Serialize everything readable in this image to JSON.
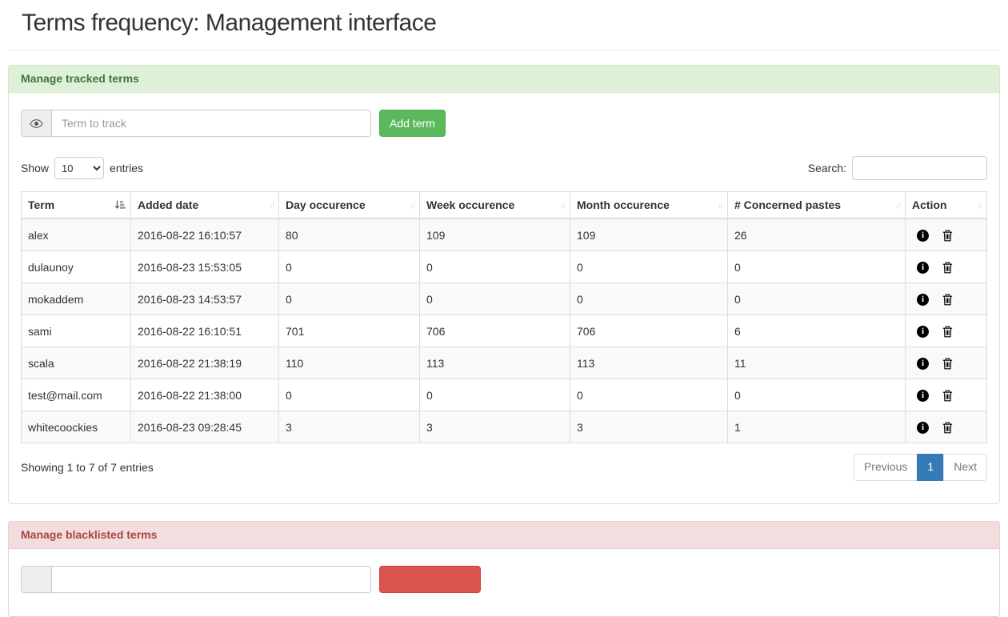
{
  "page": {
    "title": "Terms frequency: Management interface"
  },
  "colors": {
    "success_bg": "#dff0d8",
    "success_border": "#d6e9c6",
    "success_text": "#3c763d",
    "danger_bg": "#f2dede",
    "danger_border": "#ebccd1",
    "danger_text": "#a94442",
    "btn_success": "#5cb85c",
    "btn_danger": "#d9534f",
    "pagination_active": "#337ab7",
    "table_border": "#ddd",
    "stripe": "#f9f9f9"
  },
  "tracked_panel": {
    "title": "Manage tracked terms",
    "input_placeholder": "Term to track",
    "input_addon_icon": "eye-icon",
    "add_button": "Add term",
    "table": {
      "show_label": "Show",
      "show_value": "10",
      "entries_label": "entries",
      "search_label": "Search:",
      "search_value": "",
      "columns": [
        {
          "key": "term",
          "label": "Term",
          "sort": "asc-active"
        },
        {
          "key": "added",
          "label": "Added date",
          "sort": "none"
        },
        {
          "key": "day",
          "label": "Day occurence",
          "sort": "none"
        },
        {
          "key": "week",
          "label": "Week occurence",
          "sort": "none"
        },
        {
          "key": "month",
          "label": "Month occurence",
          "sort": "none"
        },
        {
          "key": "pastes",
          "label": "# Concerned pastes",
          "sort": "none"
        },
        {
          "key": "action",
          "label": "Action",
          "sort": "none"
        }
      ],
      "row_action_icons": [
        "info-icon",
        "trash-icon"
      ],
      "rows": [
        {
          "term": "alex",
          "added": "2016-08-22 16:10:57",
          "day": "80",
          "week": "109",
          "month": "109",
          "pastes": "26"
        },
        {
          "term": "dulaunoy",
          "added": "2016-08-23 15:53:05",
          "day": "0",
          "week": "0",
          "month": "0",
          "pastes": "0"
        },
        {
          "term": "mokaddem",
          "added": "2016-08-23 14:53:57",
          "day": "0",
          "week": "0",
          "month": "0",
          "pastes": "0"
        },
        {
          "term": "sami",
          "added": "2016-08-22 16:10:51",
          "day": "701",
          "week": "706",
          "month": "706",
          "pastes": "6"
        },
        {
          "term": "scala",
          "added": "2016-08-22 21:38:19",
          "day": "110",
          "week": "113",
          "month": "113",
          "pastes": "11"
        },
        {
          "term": "test@mail.com",
          "added": "2016-08-22 21:38:00",
          "day": "0",
          "week": "0",
          "month": "0",
          "pastes": "0"
        },
        {
          "term": "whitecoockies",
          "added": "2016-08-23 09:28:45",
          "day": "3",
          "week": "3",
          "month": "3",
          "pastes": "1"
        }
      ],
      "info": "Showing 1 to 7 of 7 entries",
      "pagination": {
        "previous": "Previous",
        "page": "1",
        "next": "Next"
      }
    }
  },
  "blacklist_panel": {
    "title": "Manage blacklisted terms",
    "input_value": ""
  }
}
